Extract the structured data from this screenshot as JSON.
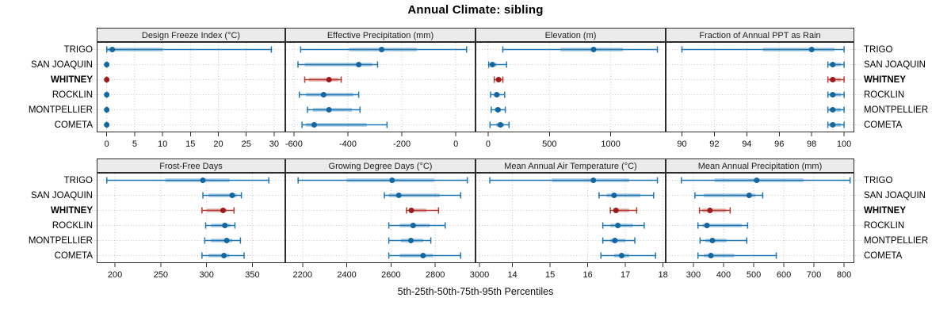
{
  "title": "Annual Climate: sibling",
  "caption": "5th-25th-50th-75th-95th Percentiles",
  "percentile_levels": [
    "5th",
    "25th",
    "50th",
    "75th",
    "95th"
  ],
  "sites": [
    "TRIGO",
    "SAN JOAQUIN",
    "WHITNEY",
    "ROCKLIN",
    "MONTPELLIER",
    "COMETA"
  ],
  "highlight_site": "WHITNEY",
  "colors": {
    "site": "#1F77B4",
    "site_dot": "#14669E",
    "highlight": "#B5392F",
    "highlight_dot": "#9A1C1C",
    "band_opacity": 0.38,
    "panel_border": "#2B2B2B",
    "header_bg": "#EBEBEB",
    "grid": "#C9C9C9",
    "text": "#000000"
  },
  "chart_data": [
    {
      "type": "dotplot",
      "panel_title": "Design Freeze Index (°C)",
      "xlim": [
        -1.8,
        32
      ],
      "ticks": [
        0,
        5,
        10,
        15,
        20,
        25,
        30
      ],
      "series": [
        {
          "name": "TRIGO",
          "percentiles": [
            0,
            0,
            1,
            10,
            29.5
          ]
        },
        {
          "name": "SAN JOAQUIN",
          "percentiles": [
            0,
            0,
            0,
            0,
            0
          ]
        },
        {
          "name": "WHITNEY",
          "percentiles": [
            0,
            0,
            0,
            0,
            0
          ]
        },
        {
          "name": "ROCKLIN",
          "percentiles": [
            0,
            0,
            0,
            0,
            0
          ]
        },
        {
          "name": "MONTPELLIER",
          "percentiles": [
            0,
            0,
            0,
            0,
            0
          ]
        },
        {
          "name": "COMETA",
          "percentiles": [
            0,
            0,
            0,
            0,
            0
          ]
        }
      ]
    },
    {
      "type": "dotplot",
      "panel_title": "Effective Precipitation (mm)",
      "xlim": [
        -632,
        73
      ],
      "ticks": [
        -600,
        -400,
        -200,
        0
      ],
      "series": [
        {
          "name": "TRIGO",
          "percentiles": [
            -575,
            -395,
            -275,
            -145,
            40
          ]
        },
        {
          "name": "SAN JOAQUIN",
          "percentiles": [
            -585,
            -560,
            -360,
            -310,
            -290
          ]
        },
        {
          "name": "WHITNEY",
          "percentiles": [
            -560,
            -545,
            -470,
            -435,
            -425
          ]
        },
        {
          "name": "ROCKLIN",
          "percentiles": [
            -580,
            -555,
            -490,
            -380,
            -360
          ]
        },
        {
          "name": "MONTPELLIER",
          "percentiles": [
            -550,
            -530,
            -470,
            -385,
            -355
          ]
        },
        {
          "name": "COMETA",
          "percentiles": [
            -570,
            -555,
            -525,
            -330,
            -255
          ]
        }
      ]
    },
    {
      "type": "dotplot",
      "panel_title": "Elevation (m)",
      "xlim": [
        -103,
        1448
      ],
      "ticks": [
        0,
        500,
        1000
      ],
      "series": [
        {
          "name": "TRIGO",
          "percentiles": [
            120,
            590,
            860,
            1100,
            1380
          ]
        },
        {
          "name": "SAN JOAQUIN",
          "percentiles": [
            5,
            20,
            35,
            70,
            150
          ]
        },
        {
          "name": "WHITNEY",
          "percentiles": [
            50,
            70,
            85,
            100,
            120
          ]
        },
        {
          "name": "ROCKLIN",
          "percentiles": [
            20,
            50,
            70,
            95,
            135
          ]
        },
        {
          "name": "MONTPELLIER",
          "percentiles": [
            25,
            55,
            80,
            105,
            140
          ]
        },
        {
          "name": "COMETA",
          "percentiles": [
            15,
            65,
            100,
            130,
            170
          ]
        }
      ]
    },
    {
      "type": "dotplot",
      "panel_title": "Fraction of Annual PPT as Rain",
      "xlim": [
        89.0,
        100.63
      ],
      "ticks": [
        90,
        92,
        94,
        96,
        98,
        100
      ],
      "series": [
        {
          "name": "TRIGO",
          "percentiles": [
            90,
            95,
            98,
            99.4,
            100
          ]
        },
        {
          "name": "SAN JOAQUIN",
          "percentiles": [
            99.0,
            99.1,
            99.3,
            99.8,
            100
          ]
        },
        {
          "name": "WHITNEY",
          "percentiles": [
            99.0,
            99.1,
            99.3,
            99.8,
            100
          ]
        },
        {
          "name": "ROCKLIN",
          "percentiles": [
            99.0,
            99.1,
            99.3,
            99.8,
            100
          ]
        },
        {
          "name": "MONTPELLIER",
          "percentiles": [
            99.0,
            99.1,
            99.3,
            99.8,
            100
          ]
        },
        {
          "name": "COMETA",
          "percentiles": [
            99.0,
            99.1,
            99.3,
            99.8,
            100
          ]
        }
      ]
    },
    {
      "type": "dotplot",
      "panel_title": "Frost-Free Days",
      "xlim": [
        180,
        386
      ],
      "ticks": [
        200,
        250,
        300,
        350
      ],
      "series": [
        {
          "name": "TRIGO",
          "percentiles": [
            191,
            255,
            296,
            325,
            368
          ]
        },
        {
          "name": "SAN JOAQUIN",
          "percentiles": [
            296,
            302,
            328,
            333,
            338
          ]
        },
        {
          "name": "WHITNEY",
          "percentiles": [
            295,
            300,
            318,
            322,
            330
          ]
        },
        {
          "name": "ROCKLIN",
          "percentiles": [
            299,
            305,
            320,
            326,
            331
          ]
        },
        {
          "name": "MONTPELLIER",
          "percentiles": [
            298,
            305,
            322,
            328,
            337
          ]
        },
        {
          "name": "COMETA",
          "percentiles": [
            295,
            302,
            319,
            325,
            341
          ]
        }
      ]
    },
    {
      "type": "dotplot",
      "panel_title": "Growing Degree Days (°C)",
      "xlim": [
        2122,
        2982
      ],
      "ticks": [
        2200,
        2400,
        2600,
        2800,
        3000
      ],
      "series": [
        {
          "name": "TRIGO",
          "percentiles": [
            2180,
            2400,
            2605,
            2795,
            2945
          ]
        },
        {
          "name": "SAN JOAQUIN",
          "percentiles": [
            2570,
            2590,
            2635,
            2820,
            2915
          ]
        },
        {
          "name": "WHITNEY",
          "percentiles": [
            2670,
            2682,
            2692,
            2760,
            2815
          ]
        },
        {
          "name": "ROCKLIN",
          "percentiles": [
            2590,
            2640,
            2700,
            2775,
            2845
          ]
        },
        {
          "name": "MONTPELLIER",
          "percentiles": [
            2590,
            2645,
            2690,
            2745,
            2780
          ]
        },
        {
          "name": "COMETA",
          "percentiles": [
            2590,
            2640,
            2745,
            2790,
            2915
          ]
        }
      ]
    },
    {
      "type": "dotplot",
      "panel_title": "Mean Annual Air Temperature (°C)",
      "xlim": [
        13.02,
        18.07
      ],
      "ticks": [
        14,
        15,
        16,
        17,
        18
      ],
      "series": [
        {
          "name": "TRIGO",
          "percentiles": [
            13.4,
            15.05,
            16.15,
            17.1,
            17.85
          ]
        },
        {
          "name": "SAN JOAQUIN",
          "percentiles": [
            16.3,
            16.5,
            16.7,
            17.4,
            17.75
          ]
        },
        {
          "name": "WHITNEY",
          "percentiles": [
            16.6,
            16.68,
            16.75,
            17.1,
            17.3
          ]
        },
        {
          "name": "ROCKLIN",
          "percentiles": [
            16.4,
            16.6,
            16.8,
            17.2,
            17.5
          ]
        },
        {
          "name": "MONTPELLIER",
          "percentiles": [
            16.4,
            16.6,
            16.72,
            17.0,
            17.25
          ]
        },
        {
          "name": "COMETA",
          "percentiles": [
            16.35,
            16.7,
            16.9,
            17.1,
            17.8
          ]
        }
      ]
    },
    {
      "type": "dotplot",
      "panel_title": "Mean Annual Precipitation (mm)",
      "xlim": [
        208,
        834
      ],
      "ticks": [
        300,
        400,
        500,
        600,
        700,
        800
      ],
      "series": [
        {
          "name": "TRIGO",
          "percentiles": [
            260,
            370,
            510,
            665,
            820
          ]
        },
        {
          "name": "SAN JOAQUIN",
          "percentiles": [
            305,
            335,
            485,
            505,
            530
          ]
        },
        {
          "name": "WHITNEY",
          "percentiles": [
            320,
            330,
            355,
            408,
            422
          ]
        },
        {
          "name": "ROCKLIN",
          "percentiles": [
            315,
            330,
            345,
            460,
            480
          ]
        },
        {
          "name": "MONTPELLIER",
          "percentiles": [
            322,
            340,
            363,
            410,
            477
          ]
        },
        {
          "name": "COMETA",
          "percentiles": [
            315,
            335,
            358,
            435,
            575
          ]
        }
      ]
    }
  ]
}
